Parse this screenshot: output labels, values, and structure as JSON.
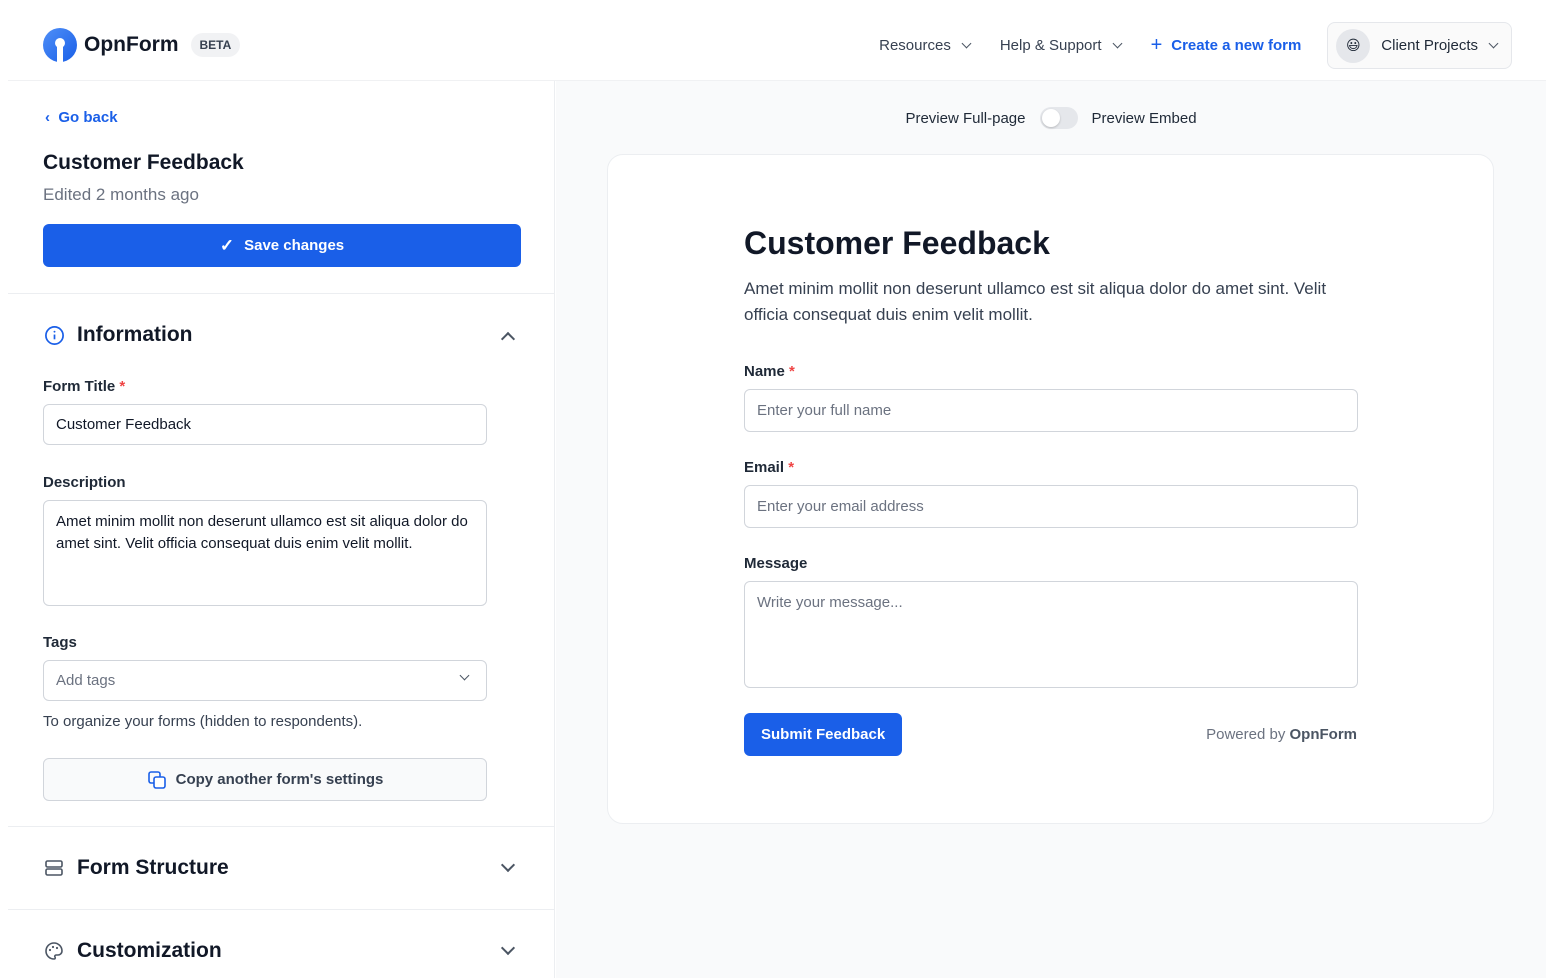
{
  "header": {
    "brand": "OpnForm",
    "badge": "BETA",
    "nav": [
      {
        "label": "Resources"
      },
      {
        "label": "Help & Support"
      }
    ],
    "create_label": "Create a new form",
    "workspace": {
      "emoji": "😃",
      "label": "Client Projects"
    }
  },
  "sidebar": {
    "go_back": "Go back",
    "form_name": "Customer Feedback",
    "edited": "Edited 2 months ago",
    "save_label": "Save changes",
    "sections": [
      {
        "title": "Information",
        "icon": "info-icon",
        "expanded": true
      },
      {
        "title": "Form Structure",
        "icon": "layers-icon",
        "expanded": false
      },
      {
        "title": "Customization",
        "icon": "palette-icon",
        "expanded": false
      }
    ],
    "form_title_label": "Form Title",
    "form_title_value": "Customer Feedback",
    "description_label": "Description",
    "description_value": "Amet minim mollit non deserunt ullamco est sit aliqua dolor do amet sint. Velit officia consequat duis enim velit mollit.",
    "tags_label": "Tags",
    "tags_placeholder": "Add tags",
    "tags_help": "To organize your forms (hidden to respondents).",
    "copy_label": "Copy another form's settings"
  },
  "preview": {
    "full_page": "Preview Full-page",
    "embed": "Preview Embed",
    "embed_enabled": false,
    "title": "Customer Feedback",
    "description": "Amet minim mollit non deserunt ullamco est sit aliqua dolor do amet sint. Velit officia consequat duis enim velit mollit.",
    "fields": [
      {
        "label": "Name",
        "required": true,
        "placeholder": "Enter your full name"
      },
      {
        "label": "Email",
        "required": true,
        "placeholder": "Enter your email address"
      },
      {
        "label": "Message",
        "required": false,
        "placeholder": "Write your message..."
      }
    ],
    "submit": "Submit Feedback",
    "powered_prefix": "Powered by",
    "powered_brand": "OpnForm"
  },
  "colors": {
    "accent": "#1a5fe8",
    "required": "#ef4444"
  }
}
